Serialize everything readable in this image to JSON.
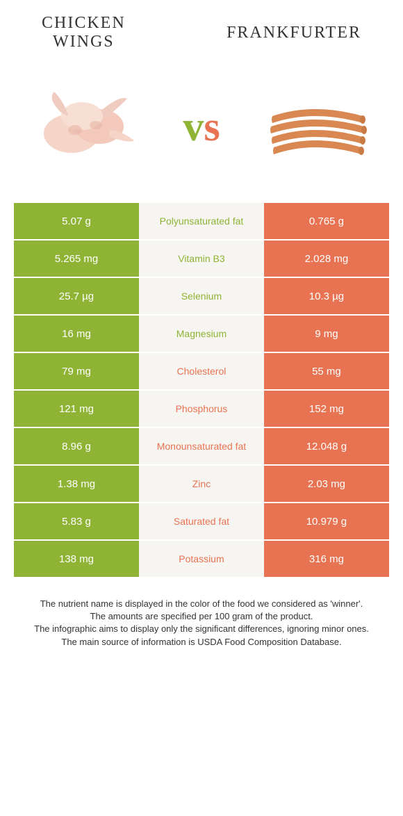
{
  "colors": {
    "green": "#8fb334",
    "orange": "#e87352",
    "mid_bg": "#f7f5f2",
    "title": "#333333"
  },
  "food_a": {
    "title_line1": "Chicken",
    "title_line2": "Wings"
  },
  "food_b": {
    "title": "Frankfurter"
  },
  "vs_label": "vs",
  "nutrients": [
    {
      "label": "Polyunsaturated fat",
      "left_val": "5.07 g",
      "right_val": "0.765 g",
      "winner": "a"
    },
    {
      "label": "Vitamin B3",
      "left_val": "5.265 mg",
      "right_val": "2.028 mg",
      "winner": "a"
    },
    {
      "label": "Selenium",
      "left_val": "25.7 µg",
      "right_val": "10.3 µg",
      "winner": "a"
    },
    {
      "label": "Magnesium",
      "left_val": "16 mg",
      "right_val": "9 mg",
      "winner": "a"
    },
    {
      "label": "Cholesterol",
      "left_val": "79 mg",
      "right_val": "55 mg",
      "winner": "b"
    },
    {
      "label": "Phosphorus",
      "left_val": "121 mg",
      "right_val": "152 mg",
      "winner": "b"
    },
    {
      "label": "Monounsaturated fat",
      "left_val": "8.96 g",
      "right_val": "12.048 g",
      "winner": "b"
    },
    {
      "label": "Zinc",
      "left_val": "1.38 mg",
      "right_val": "2.03 mg",
      "winner": "b"
    },
    {
      "label": "Saturated fat",
      "left_val": "5.83 g",
      "right_val": "10.979 g",
      "winner": "b"
    },
    {
      "label": "Potassium",
      "left_val": "138 mg",
      "right_val": "316 mg",
      "winner": "b"
    }
  ],
  "footnotes": [
    "The nutrient name is displayed in the color of the food we considered as 'winner'.",
    "The amounts are specified per 100 gram of the product.",
    "The infographic aims to display only the significant differences, ignoring minor ones.",
    "The main source of information is USDA Food Composition Database."
  ]
}
